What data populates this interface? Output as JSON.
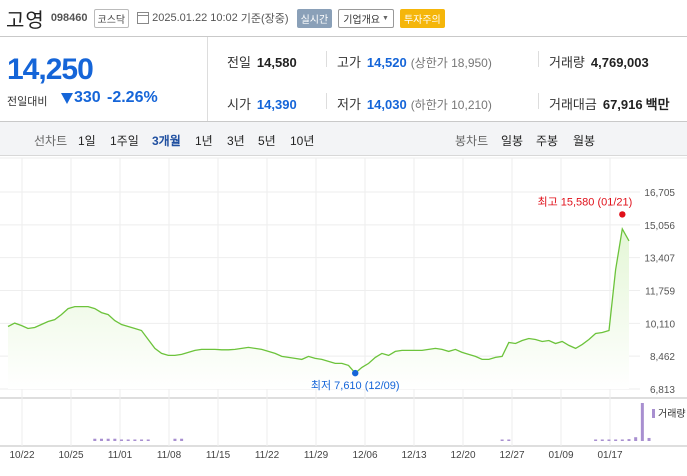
{
  "stock": {
    "name": "고영",
    "code": "098460",
    "market": "코스닥",
    "datetime": "2025.01.22 10:02",
    "basis": "기준(장중)",
    "realtime_label": "실시간",
    "company_dropdown": "기업개요",
    "caution_label": "투자주의"
  },
  "quote": {
    "price": "14,250",
    "change_label": "전일대비",
    "change_amount": "330",
    "change_rate": "-2.26%",
    "prev_close_label": "전일",
    "prev_close": "14,580",
    "high_label": "고가",
    "high": "14,520",
    "upper_limit": "(상한가 18,950)",
    "volume_label": "거래량",
    "volume": "4,769,003",
    "open_label": "시가",
    "open": "14,390",
    "low_label": "저가",
    "low": "14,030",
    "lower_limit": "(하한가 10,210)",
    "amount_label": "거래대금",
    "amount": "67,916",
    "amount_unit": "백만"
  },
  "periods": {
    "line_label": "선차트",
    "line_options": [
      "1일",
      "1주일",
      "3개월",
      "1년",
      "3년",
      "5년",
      "10년"
    ],
    "selected": "3개월",
    "candle_label": "봉차트",
    "candle_options": [
      "일봉",
      "주봉",
      "월봉"
    ]
  },
  "colors": {
    "line": "#6cc33b",
    "fill_top": "#e4f6d6",
    "up": "#e0101a",
    "down": "#1565d8",
    "volume_bar": "#a88fd0"
  },
  "chart_data": {
    "type": "area",
    "y_ticks": [
      "16,705",
      "15,056",
      "13,407",
      "11,759",
      "10,110",
      "8,462",
      "6,813"
    ],
    "ylim": [
      6813,
      16705
    ],
    "x_ticks": [
      "10/22",
      "10/25",
      "11/01",
      "11/08",
      "11/15",
      "11/22",
      "11/29",
      "12/06",
      "12/13",
      "12/20",
      "12/27",
      "01/09",
      "01/17"
    ],
    "prices": [
      9950,
      10120,
      10000,
      9850,
      9900,
      10050,
      10200,
      10300,
      10550,
      10850,
      10950,
      10950,
      10950,
      10850,
      10650,
      10550,
      10250,
      10050,
      9950,
      9850,
      9750,
      9300,
      8850,
      8600,
      8500,
      8500,
      8550,
      8650,
      8750,
      8800,
      8800,
      8800,
      8780,
      8780,
      8800,
      8850,
      8900,
      8850,
      8800,
      8700,
      8600,
      8450,
      8400,
      8350,
      8300,
      8450,
      8350,
      8300,
      8200,
      8100,
      8100,
      8000,
      7610,
      7900,
      8100,
      8400,
      8600,
      8500,
      8700,
      8750,
      8750,
      8750,
      8750,
      8800,
      8850,
      8800,
      8700,
      8800,
      8650,
      8550,
      8450,
      8300,
      8300,
      8400,
      8450,
      9150,
      9100,
      9250,
      9350,
      9300,
      9200,
      9250,
      9100,
      9200,
      9000,
      8850,
      9050,
      9300,
      9600,
      9650,
      9750,
      12800,
      14850,
      14250
    ],
    "volume": [
      0,
      0,
      0,
      0,
      0,
      0,
      0,
      0,
      0,
      0,
      0,
      0,
      0,
      6,
      6,
      6,
      6,
      4,
      4,
      4,
      4,
      4,
      0,
      0,
      0,
      6,
      6,
      0,
      0,
      0,
      0,
      0,
      0,
      0,
      0,
      0,
      0,
      0,
      0,
      0,
      0,
      0,
      0,
      0,
      0,
      0,
      0,
      0,
      0,
      0,
      0,
      0,
      0,
      0,
      0,
      0,
      0,
      0,
      0,
      0,
      0,
      0,
      0,
      0,
      0,
      0,
      0,
      0,
      0,
      0,
      0,
      0,
      0,
      0,
      3,
      3,
      0,
      0,
      0,
      0,
      0,
      0,
      0,
      0,
      0,
      0,
      0,
      0,
      4,
      4,
      4,
      4,
      4,
      5,
      10,
      100,
      8
    ],
    "high_marker": {
      "label": "최고 15,580 (01/21)",
      "value": 15580,
      "index": 92
    },
    "low_marker": {
      "label": "최저 7,610 (12/09)",
      "value": 7610,
      "index": 52
    },
    "volume_legend": "거래량"
  }
}
